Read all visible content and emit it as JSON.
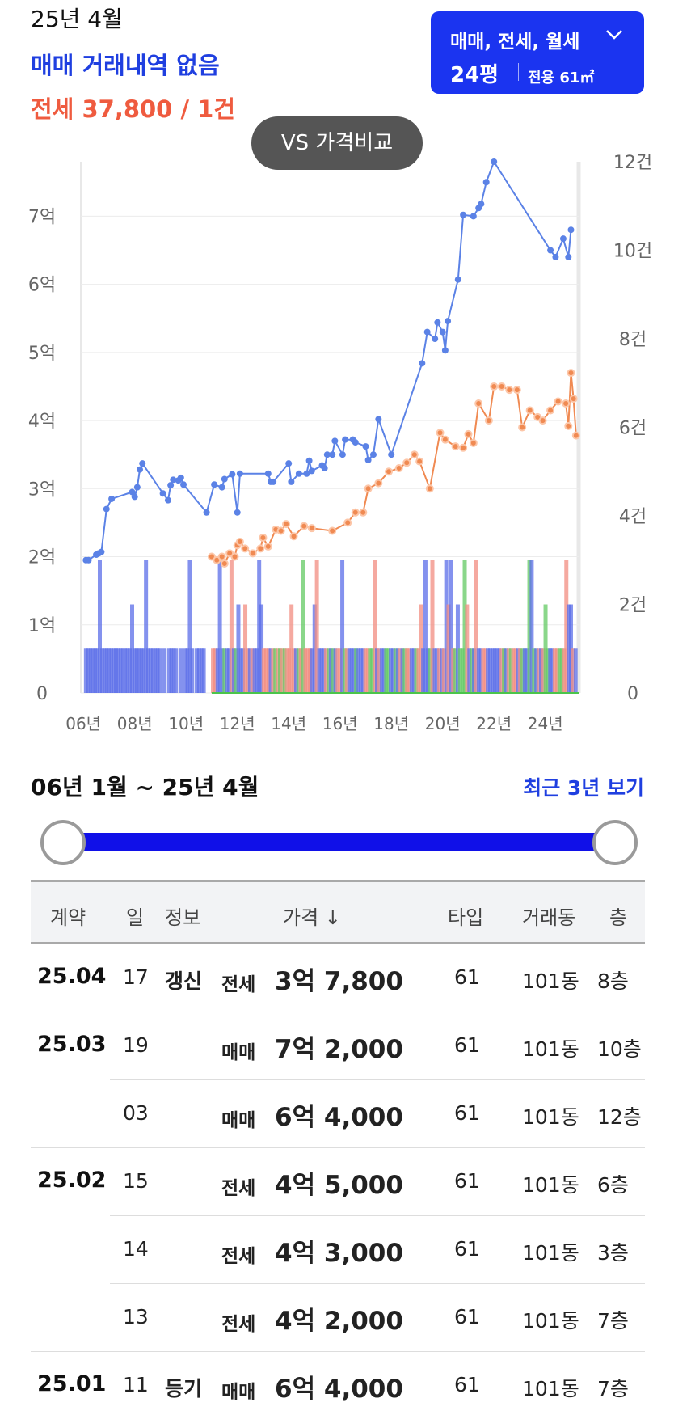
{
  "header": {
    "month": "25년 4월",
    "sale_status": "매매 거래내역 없음",
    "jeonse_summary": "전세 37,800 / 1건"
  },
  "type_selector": {
    "types": "매매, 전세, 월세",
    "pyeong": "24평",
    "area": "전용 61㎡",
    "icon": "chevron-down-icon"
  },
  "compare_button": "VS 가격비교",
  "colors": {
    "sale": "#1f3fe0",
    "jeonse": "#ef5b3f",
    "wolse": "#3fbf3f",
    "slider": "#1010e8"
  },
  "chart_data": {
    "type": "line",
    "title": "",
    "left_axis_ticks": [
      "0",
      "1억",
      "2억",
      "3억",
      "4억",
      "5억",
      "6억",
      "7억"
    ],
    "right_axis_ticks": [
      "0",
      "2건",
      "4건",
      "6건",
      "8건",
      "10건",
      "12건"
    ],
    "x_ticks": [
      "06년",
      "08년",
      "10년",
      "12년",
      "14년",
      "16년",
      "18년",
      "20년",
      "22년",
      "24년"
    ],
    "xlim": [
      2005.9,
      2025.3
    ],
    "ylim": [
      0,
      7.8
    ],
    "ylim_right": [
      0,
      12
    ],
    "grid": true,
    "series": [
      {
        "name": "매매",
        "color": "#5b82e6",
        "points": [
          [
            2006.1,
            1.95
          ],
          [
            2006.2,
            1.95
          ],
          [
            2006.5,
            2.03
          ],
          [
            2006.6,
            2.05
          ],
          [
            2006.7,
            2.07
          ],
          [
            2006.9,
            2.7
          ],
          [
            2007.1,
            2.85
          ],
          [
            2007.9,
            2.95
          ],
          [
            2008.0,
            2.88
          ],
          [
            2008.1,
            3.02
          ],
          [
            2008.2,
            3.28
          ],
          [
            2008.3,
            3.37
          ],
          [
            2009.1,
            2.93
          ],
          [
            2009.3,
            2.83
          ],
          [
            2009.4,
            3.05
          ],
          [
            2009.5,
            3.13
          ],
          [
            2009.7,
            3.12
          ],
          [
            2009.8,
            3.16
          ],
          [
            2009.9,
            3.06
          ],
          [
            2010.8,
            2.65
          ],
          [
            2011.1,
            3.06
          ],
          [
            2011.4,
            3.02
          ],
          [
            2011.5,
            3.14
          ],
          [
            2011.8,
            3.21
          ],
          [
            2012.0,
            2.65
          ],
          [
            2012.1,
            3.22
          ],
          [
            2013.2,
            3.22
          ],
          [
            2013.3,
            3.1
          ],
          [
            2013.4,
            3.1
          ],
          [
            2014.0,
            3.37
          ],
          [
            2014.1,
            3.1
          ],
          [
            2014.4,
            3.22
          ],
          [
            2014.7,
            3.22
          ],
          [
            2014.8,
            3.41
          ],
          [
            2014.9,
            3.26
          ],
          [
            2015.3,
            3.34
          ],
          [
            2015.4,
            3.3
          ],
          [
            2015.5,
            3.5
          ],
          [
            2015.7,
            3.5
          ],
          [
            2015.8,
            3.7
          ],
          [
            2016.1,
            3.5
          ],
          [
            2016.2,
            3.72
          ],
          [
            2016.5,
            3.72
          ],
          [
            2016.6,
            3.68
          ],
          [
            2017.0,
            3.62
          ],
          [
            2017.1,
            3.42
          ],
          [
            2017.3,
            3.5
          ],
          [
            2017.5,
            4.02
          ],
          [
            2018.0,
            3.5
          ],
          [
            2019.2,
            4.84
          ],
          [
            2019.4,
            5.3
          ],
          [
            2019.7,
            5.2
          ],
          [
            2019.8,
            5.44
          ],
          [
            2020.0,
            5.3
          ],
          [
            2020.1,
            5.03
          ],
          [
            2020.2,
            5.46
          ],
          [
            2020.6,
            6.07
          ],
          [
            2020.8,
            7.02
          ],
          [
            2021.2,
            7.0
          ],
          [
            2021.4,
            7.12
          ],
          [
            2021.5,
            7.18
          ],
          [
            2021.7,
            7.5
          ],
          [
            2022.0,
            7.8
          ],
          [
            2024.2,
            6.5
          ],
          [
            2024.4,
            6.4
          ],
          [
            2024.7,
            6.67
          ],
          [
            2024.9,
            6.4
          ],
          [
            2025.0,
            6.8
          ]
        ]
      },
      {
        "name": "전세",
        "color": "#f08a52",
        "points": [
          [
            2011.0,
            2.0
          ],
          [
            2011.2,
            1.95
          ],
          [
            2011.4,
            2.0
          ],
          [
            2011.5,
            1.9
          ],
          [
            2011.7,
            2.05
          ],
          [
            2011.9,
            2.0
          ],
          [
            2012.0,
            2.17
          ],
          [
            2012.1,
            2.22
          ],
          [
            2012.3,
            2.12
          ],
          [
            2012.6,
            2.05
          ],
          [
            2012.9,
            2.12
          ],
          [
            2013.0,
            2.28
          ],
          [
            2013.2,
            2.15
          ],
          [
            2013.5,
            2.4
          ],
          [
            2013.7,
            2.38
          ],
          [
            2013.9,
            2.48
          ],
          [
            2014.2,
            2.3
          ],
          [
            2014.6,
            2.45
          ],
          [
            2014.9,
            2.42
          ],
          [
            2015.7,
            2.38
          ],
          [
            2016.3,
            2.5
          ],
          [
            2016.6,
            2.65
          ],
          [
            2016.9,
            2.65
          ],
          [
            2017.1,
            3.0
          ],
          [
            2017.5,
            3.08
          ],
          [
            2017.9,
            3.25
          ],
          [
            2018.3,
            3.3
          ],
          [
            2018.6,
            3.38
          ],
          [
            2018.9,
            3.5
          ],
          [
            2019.1,
            3.4
          ],
          [
            2019.5,
            3.0
          ],
          [
            2019.9,
            3.82
          ],
          [
            2020.1,
            3.72
          ],
          [
            2020.5,
            3.62
          ],
          [
            2020.8,
            3.6
          ],
          [
            2021.0,
            3.8
          ],
          [
            2021.2,
            3.67
          ],
          [
            2021.4,
            4.25
          ],
          [
            2021.8,
            4.0
          ],
          [
            2022.0,
            4.5
          ],
          [
            2022.3,
            4.5
          ],
          [
            2022.6,
            4.45
          ],
          [
            2022.9,
            4.45
          ],
          [
            2023.1,
            3.9
          ],
          [
            2023.4,
            4.15
          ],
          [
            2023.7,
            4.05
          ],
          [
            2023.9,
            4.0
          ],
          [
            2024.2,
            4.15
          ],
          [
            2024.5,
            4.28
          ],
          [
            2024.8,
            4.25
          ],
          [
            2024.9,
            3.92
          ],
          [
            2025.0,
            4.7
          ],
          [
            2025.1,
            4.32
          ],
          [
            2025.2,
            3.78
          ]
        ]
      }
    ],
    "volume_series": [
      {
        "name": "매매",
        "color": "#5b6ee8"
      },
      {
        "name": "전세",
        "color": "#f28c80"
      },
      {
        "name": "월세",
        "color": "#63c963"
      }
    ]
  },
  "range": {
    "label": "06년 1월 ~ 25년 4월",
    "recent_link": "최근 3년 보기"
  },
  "table": {
    "headers": {
      "contract": "계약",
      "day": "일",
      "info": "정보",
      "price": "가격 ↓",
      "type": "타입",
      "dong": "거래동",
      "floor": "층"
    },
    "rows": [
      {
        "ym": "25.04",
        "day": "17",
        "info": "갱신",
        "kind": "전세",
        "price": "3억 7,800",
        "type": "61",
        "dong": "101동",
        "floor": "8층"
      },
      {
        "ym": "25.03",
        "day": "19",
        "info": "",
        "kind": "매매",
        "price": "7억 2,000",
        "type": "61",
        "dong": "101동",
        "floor": "10층"
      },
      {
        "ym": "",
        "day": "03",
        "info": "",
        "kind": "매매",
        "price": "6억 4,000",
        "type": "61",
        "dong": "101동",
        "floor": "12층"
      },
      {
        "ym": "25.02",
        "day": "15",
        "info": "",
        "kind": "전세",
        "price": "4억 5,000",
        "type": "61",
        "dong": "101동",
        "floor": "6층"
      },
      {
        "ym": "",
        "day": "14",
        "info": "",
        "kind": "전세",
        "price": "4억 3,000",
        "type": "61",
        "dong": "101동",
        "floor": "3층"
      },
      {
        "ym": "",
        "day": "13",
        "info": "",
        "kind": "전세",
        "price": "4억 2,000",
        "type": "61",
        "dong": "101동",
        "floor": "7층"
      },
      {
        "ym": "25.01",
        "day": "11",
        "info": "등기",
        "kind": "매매",
        "price": "6억 4,000",
        "type": "61",
        "dong": "101동",
        "floor": "7층"
      }
    ]
  }
}
